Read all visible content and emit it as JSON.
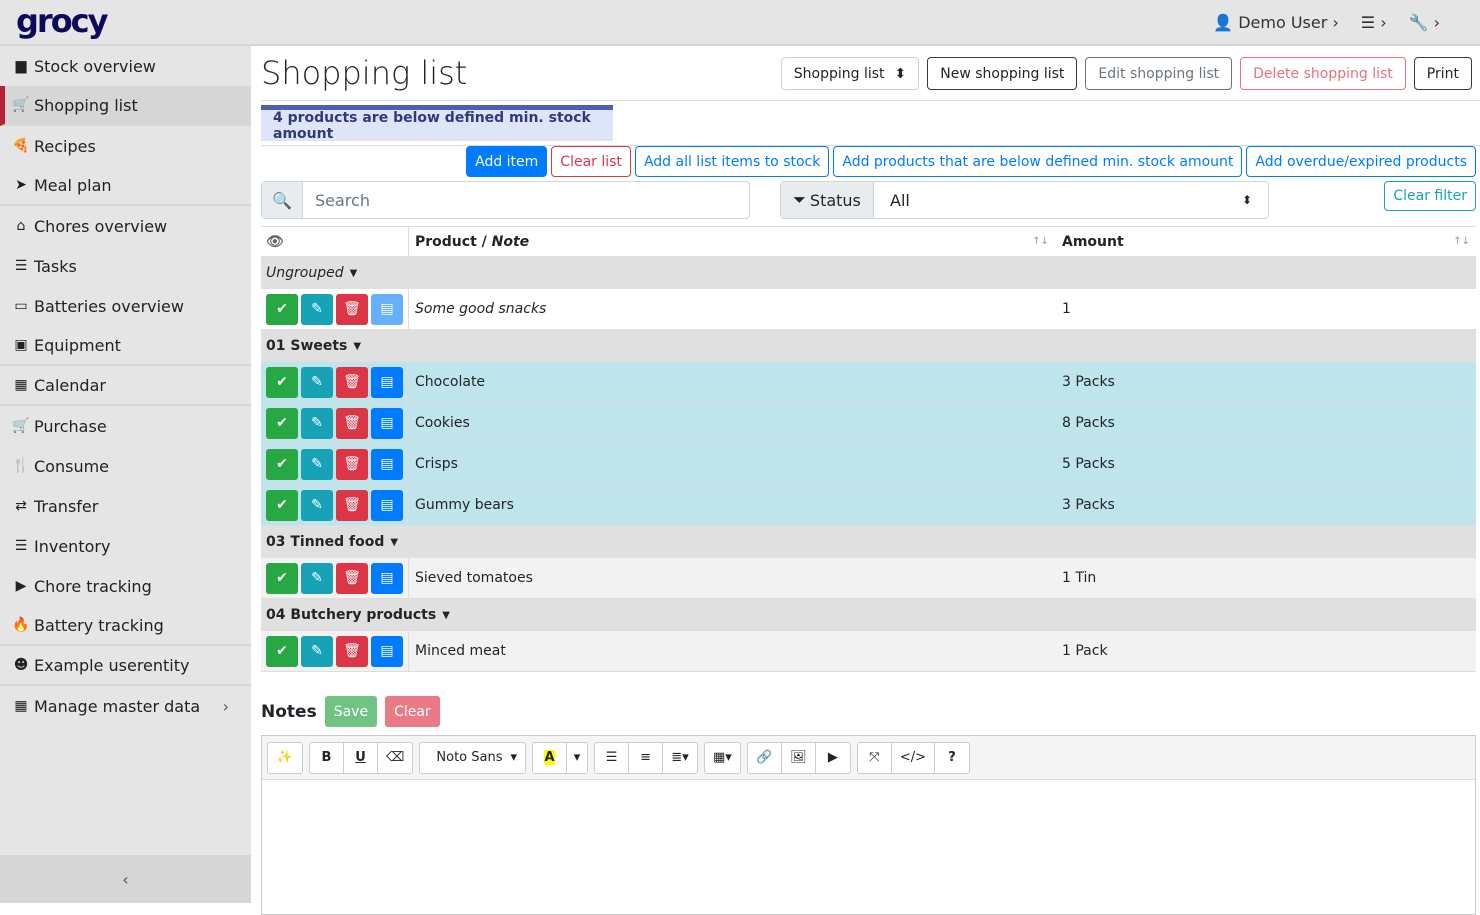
{
  "app": {
    "logo": "grocy",
    "user": "Demo User"
  },
  "sidebar": {
    "items": [
      {
        "label": "Stock overview",
        "icon": "box-icon"
      },
      {
        "label": "Shopping list",
        "icon": "cart-icon",
        "active": true
      },
      {
        "label": "Recipes",
        "icon": "pizza-icon"
      },
      {
        "label": "Meal plan",
        "icon": "paper-plane-icon"
      },
      {
        "label": "Chores overview",
        "icon": "home-icon"
      },
      {
        "label": "Tasks",
        "icon": "tasks-icon"
      },
      {
        "label": "Batteries overview",
        "icon": "battery-icon"
      },
      {
        "label": "Equipment",
        "icon": "toolbox-icon"
      },
      {
        "label": "Calendar",
        "icon": "calendar-icon"
      },
      {
        "label": "Purchase",
        "icon": "cart-icon"
      },
      {
        "label": "Consume",
        "icon": "utensils-icon"
      },
      {
        "label": "Transfer",
        "icon": "exchange-icon"
      },
      {
        "label": "Inventory",
        "icon": "list-icon"
      },
      {
        "label": "Chore tracking",
        "icon": "play-icon"
      },
      {
        "label": "Battery tracking",
        "icon": "fire-icon"
      },
      {
        "label": "Example userentity",
        "icon": "smile-icon"
      },
      {
        "label": "Manage master data",
        "icon": "table-icon"
      }
    ]
  },
  "header": {
    "title": "Shopping list",
    "select_value": "Shopping list",
    "new": "New shopping list",
    "edit": "Edit shopping list",
    "delete": "Delete shopping list",
    "print": "Print"
  },
  "alert": "4 products are below defined min. stock amount",
  "actions": {
    "add_item": "Add item",
    "clear_list": "Clear list",
    "add_all": "Add all list items to stock",
    "add_below": "Add products that are below defined min. stock amount",
    "add_overdue": "Add overdue/expired products"
  },
  "filter": {
    "search_placeholder": "Search",
    "status_label": "Status",
    "status_value": "All",
    "clear_filter": "Clear filter"
  },
  "table": {
    "col_product": "Product / ",
    "col_note": "Note",
    "col_amount": "Amount"
  },
  "groups": [
    {
      "name": "Ungrouped",
      "italic": true,
      "rows": [
        {
          "product": "Some good snacks",
          "amount": "1",
          "note": true
        }
      ]
    },
    {
      "name": "01 Sweets",
      "rows": [
        {
          "product": "Chocolate",
          "amount": "3 Packs"
        },
        {
          "product": "Cookies",
          "amount": "8 Packs"
        },
        {
          "product": "Crisps",
          "amount": "5 Packs"
        },
        {
          "product": "Gummy bears",
          "amount": "3 Packs"
        }
      ]
    },
    {
      "name": "03 Tinned food",
      "rows": [
        {
          "product": "Sieved tomatoes",
          "amount": "1 Tin"
        }
      ]
    },
    {
      "name": "04 Butchery products",
      "rows": [
        {
          "product": "Minced meat",
          "amount": "1 Pack"
        }
      ]
    }
  ],
  "notes": {
    "title": "Notes",
    "save": "Save",
    "clear": "Clear",
    "font": "Noto Sans"
  }
}
